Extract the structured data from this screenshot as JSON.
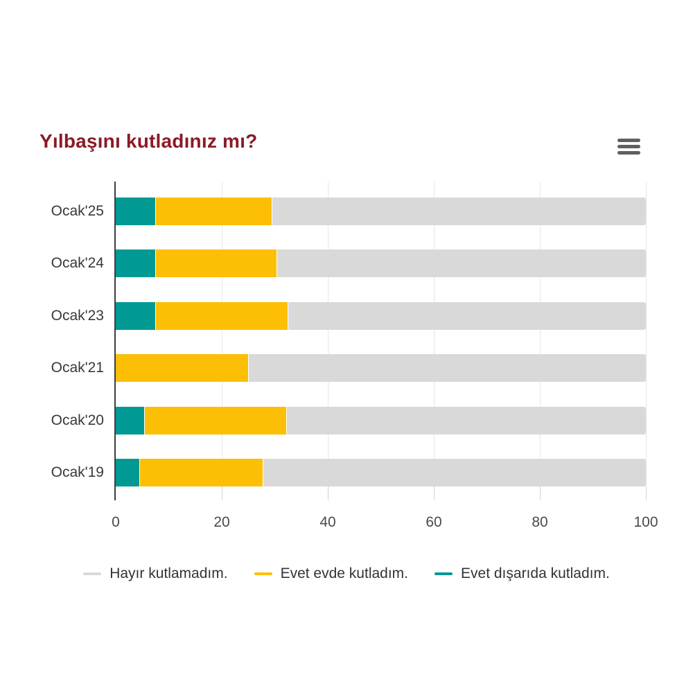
{
  "title": "Yılbaşını kutladınız mı?",
  "title_color": "#8B1A28",
  "menu": {
    "icon": "hamburger-icon",
    "color": "#606060"
  },
  "chart_data": {
    "type": "bar",
    "orientation": "horizontal",
    "stacked": true,
    "stack_total": 100,
    "title": "Yılbaşını kutladınız mı?",
    "xlabel": "",
    "ylabel": "",
    "xlim": [
      0,
      100
    ],
    "x_ticks": [
      0,
      20,
      40,
      60,
      80,
      100
    ],
    "grid": true,
    "legend_position": "bottom",
    "legend_display_order": "reversed",
    "categories": [
      "Ocak'25",
      "Ocak'24",
      "Ocak'23",
      "Ocak'21",
      "Ocak'20",
      "Ocak'19"
    ],
    "series": [
      {
        "name": "Evet dışarıda kutladım.",
        "color": "#009994",
        "values": [
          7.6,
          7.6,
          7.6,
          0,
          5.5,
          4.6
        ]
      },
      {
        "name": "Evet evde kutladım.",
        "color": "#FCBF05",
        "values": [
          22.0,
          22.8,
          25.0,
          25.1,
          26.8,
          23.2
        ]
      },
      {
        "name": "Hayır kutlamadım.",
        "color": "#D9D9D9",
        "values": [
          70.4,
          69.6,
          67.4,
          74.9,
          67.7,
          72.2
        ]
      }
    ]
  },
  "layout_colors": {
    "gridline": "#e6e6e6",
    "axis_line": "#3d3d3d",
    "tick": "#d2d2d2",
    "category_label": "#383838",
    "tick_label": "#4a4a4a",
    "legend_label": "#333333"
  }
}
